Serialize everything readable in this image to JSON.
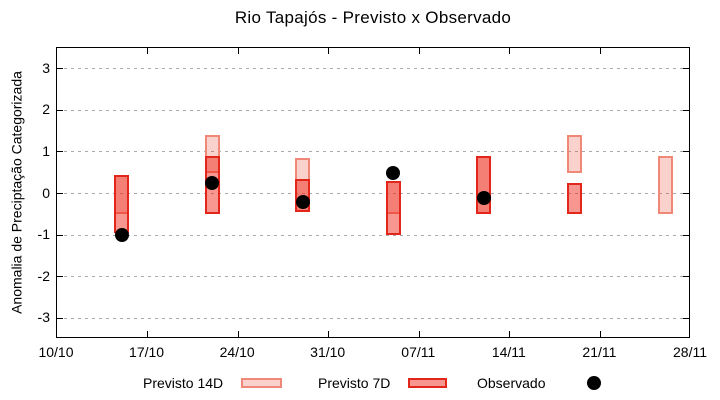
{
  "title": "Rio Tapajós - Previsto x Observado",
  "y_axis": {
    "label": "Anomalia de Preciptação Categorizada",
    "ticks": [
      3,
      2,
      1,
      0,
      -1,
      -2,
      -3
    ]
  },
  "x_axis": {
    "ticks": [
      {
        "label": "10/10",
        "day": 0
      },
      {
        "label": "17/10",
        "day": 7
      },
      {
        "label": "24/10",
        "day": 14
      },
      {
        "label": "31/10",
        "day": 21
      },
      {
        "label": "07/11",
        "day": 28
      },
      {
        "label": "14/11",
        "day": 35
      },
      {
        "label": "21/11",
        "day": 42
      },
      {
        "label": "28/11",
        "day": 49
      }
    ]
  },
  "legend": {
    "items": [
      {
        "label": "Previsto 14D",
        "swatch": "range-14d"
      },
      {
        "label": "Previsto 7D",
        "swatch": "range-7d"
      },
      {
        "label": "Observado",
        "swatch": "black-dot"
      }
    ]
  },
  "colors": {
    "p14_fill": "rgba(233,60,40,0.23)",
    "p14_border": "#f08878",
    "p7_fill": "rgba(238,35,20,0.47)",
    "p7_border": "#e2261c",
    "observed": "#000000",
    "grid": "#a9a9a9",
    "frame": "#000000"
  },
  "chart_data": {
    "type": "bar",
    "subtype": "range-bars-with-scatter-overlay",
    "title": "Rio Tapajós - Previsto x Observado",
    "xlabel": "",
    "ylabel": "Anomalia de Preciptação Categorizada",
    "ylim": [
      -3.5,
      3.5
    ],
    "y_ticks": [
      -3,
      -2,
      -1,
      0,
      1,
      2,
      3
    ],
    "x_ticks": [
      "10/10",
      "17/10",
      "24/10",
      "31/10",
      "07/11",
      "14/11",
      "21/11",
      "28/11"
    ],
    "x_span_days": 49,
    "grid": "horizontal-dotted",
    "legend_position": "bottom",
    "categories": [
      "15/10",
      "22/10",
      "29/10",
      "05/11",
      "12/11",
      "19/11",
      "26/11"
    ],
    "category_days": [
      5,
      12,
      19,
      26,
      33,
      40,
      47
    ],
    "series": [
      {
        "name": "Previsto 14D",
        "type": "range",
        "ranges": [
          {
            "date": "15/10",
            "day": 5,
            "low": -0.5,
            "high": 0.45
          },
          {
            "date": "22/10",
            "day": 12,
            "low": 0.5,
            "high": 1.4
          },
          {
            "date": "29/10",
            "day": 19,
            "low": -0.45,
            "high": 0.85
          },
          {
            "date": "05/11",
            "day": 26,
            "low": -0.5,
            "high": 0.3
          },
          {
            "date": "12/11",
            "day": 33,
            "low": -0.5,
            "high": 0.9
          },
          {
            "date": "19/11",
            "day": 40,
            "low": 0.5,
            "high": 1.4
          },
          {
            "date": "26/11",
            "day": 47,
            "low": -0.5,
            "high": 0.9
          }
        ]
      },
      {
        "name": "Previsto 7D",
        "type": "range",
        "ranges": [
          {
            "date": "15/10",
            "day": 5,
            "low": -0.95,
            "high": 0.45
          },
          {
            "date": "22/10",
            "day": 12,
            "low": -0.5,
            "high": 0.9
          },
          {
            "date": "29/10",
            "day": 19,
            "low": -0.45,
            "high": 0.35
          },
          {
            "date": "05/11",
            "day": 26,
            "low": -1.0,
            "high": 0.3
          },
          {
            "date": "12/11",
            "day": 33,
            "low": -0.5,
            "high": 0.9
          },
          {
            "date": "19/11",
            "day": 40,
            "low": -0.5,
            "high": 0.25
          }
        ]
      },
      {
        "name": "Observado",
        "type": "scatter",
        "points": [
          {
            "date": "15/10",
            "day": 5,
            "value": -1.0
          },
          {
            "date": "22/10",
            "day": 12,
            "value": 0.25
          },
          {
            "date": "29/10",
            "day": 19,
            "value": -0.2
          },
          {
            "date": "05/11",
            "day": 26,
            "value": 0.5
          },
          {
            "date": "12/11",
            "day": 33,
            "value": -0.1
          }
        ]
      }
    ]
  }
}
